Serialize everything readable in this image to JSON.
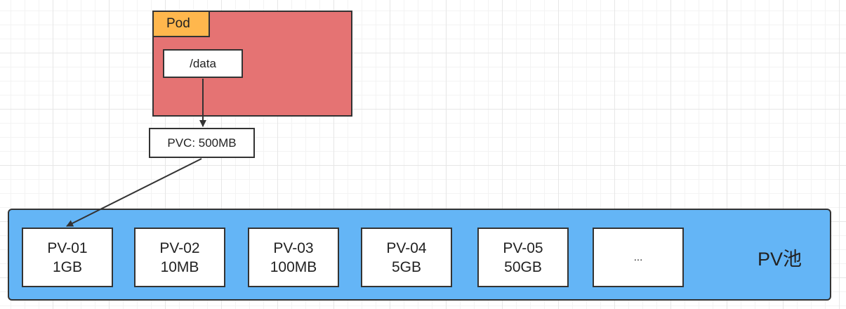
{
  "pod": {
    "label": "Pod",
    "mount_path": "/data"
  },
  "pvc": {
    "label": "PVC: 500MB"
  },
  "pool": {
    "label": "PV池",
    "volumes": [
      {
        "name": "PV-01",
        "size": "1GB"
      },
      {
        "name": "PV-02",
        "size": "10MB"
      },
      {
        "name": "PV-03",
        "size": "100MB"
      },
      {
        "name": "PV-04",
        "size": "5GB"
      },
      {
        "name": "PV-05",
        "size": "50GB"
      }
    ],
    "more": "..."
  },
  "colors": {
    "pod_fill": "#e57373",
    "pod_label_fill": "#ffb74d",
    "pool_fill": "#64b5f6",
    "stroke": "#333333"
  }
}
